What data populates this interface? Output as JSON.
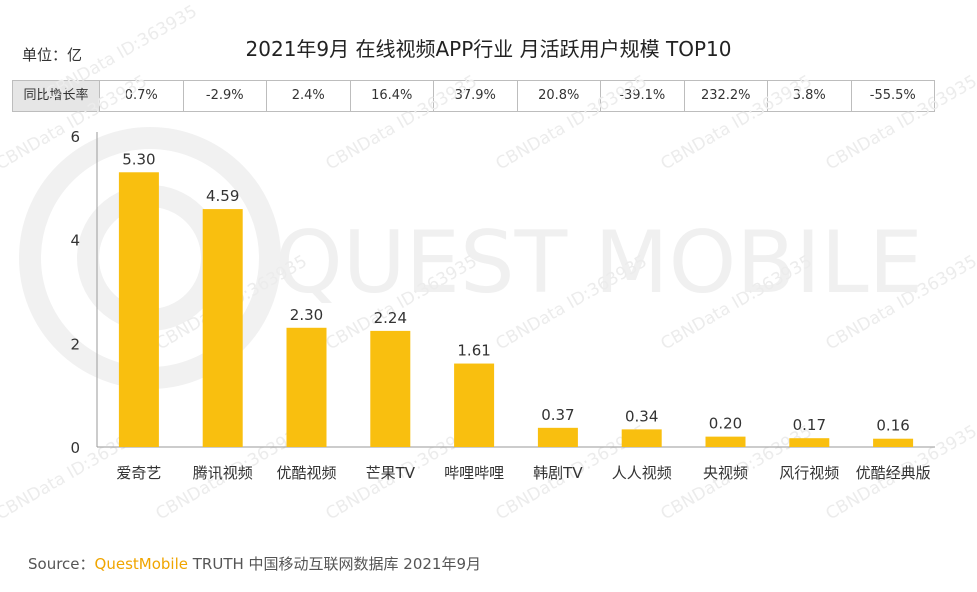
{
  "header": {
    "title": "2021年9月 在线视频APP行业 月活跃用户规模 TOP10",
    "unit": "单位：亿"
  },
  "yoy_row": {
    "label": "同比增长率",
    "values": [
      "0.7%",
      "-2.9%",
      "2.4%",
      "16.4%",
      "37.9%",
      "20.8%",
      "-39.1%",
      "232.2%",
      "3.8%",
      "-55.5%"
    ]
  },
  "chart_data": {
    "type": "bar",
    "title": "2021年9月 在线视频APP行业 月活跃用户规模 TOP10",
    "categories": [
      "爱奇艺",
      "腾讯视频",
      "优酷视频",
      "芒果TV",
      "哔哩哔哩",
      "韩剧TV",
      "人人视频",
      "央视频",
      "风行视频",
      "优酷经典版"
    ],
    "values": [
      5.3,
      4.59,
      2.3,
      2.24,
      1.61,
      0.37,
      0.34,
      0.2,
      0.17,
      0.16
    ],
    "value_labels": [
      "5.30",
      "4.59",
      "2.30",
      "2.24",
      "1.61",
      "0.37",
      "0.34",
      "0.20",
      "0.17",
      "0.16"
    ],
    "yticks": [
      "0",
      "2",
      "4",
      "6"
    ],
    "ylim": [
      0,
      6
    ],
    "xlabel": "",
    "ylabel": "单位：亿",
    "grid": false,
    "bar_color": "#f9bf0f"
  },
  "watermark": {
    "brand": "QUEST MOBILE",
    "tag": "CBNData ID:363935"
  },
  "source": {
    "prefix": "Source：",
    "brand": "QuestMobile",
    "rest": " TRUTH 中国移动互联网数据库 2021年9月"
  }
}
